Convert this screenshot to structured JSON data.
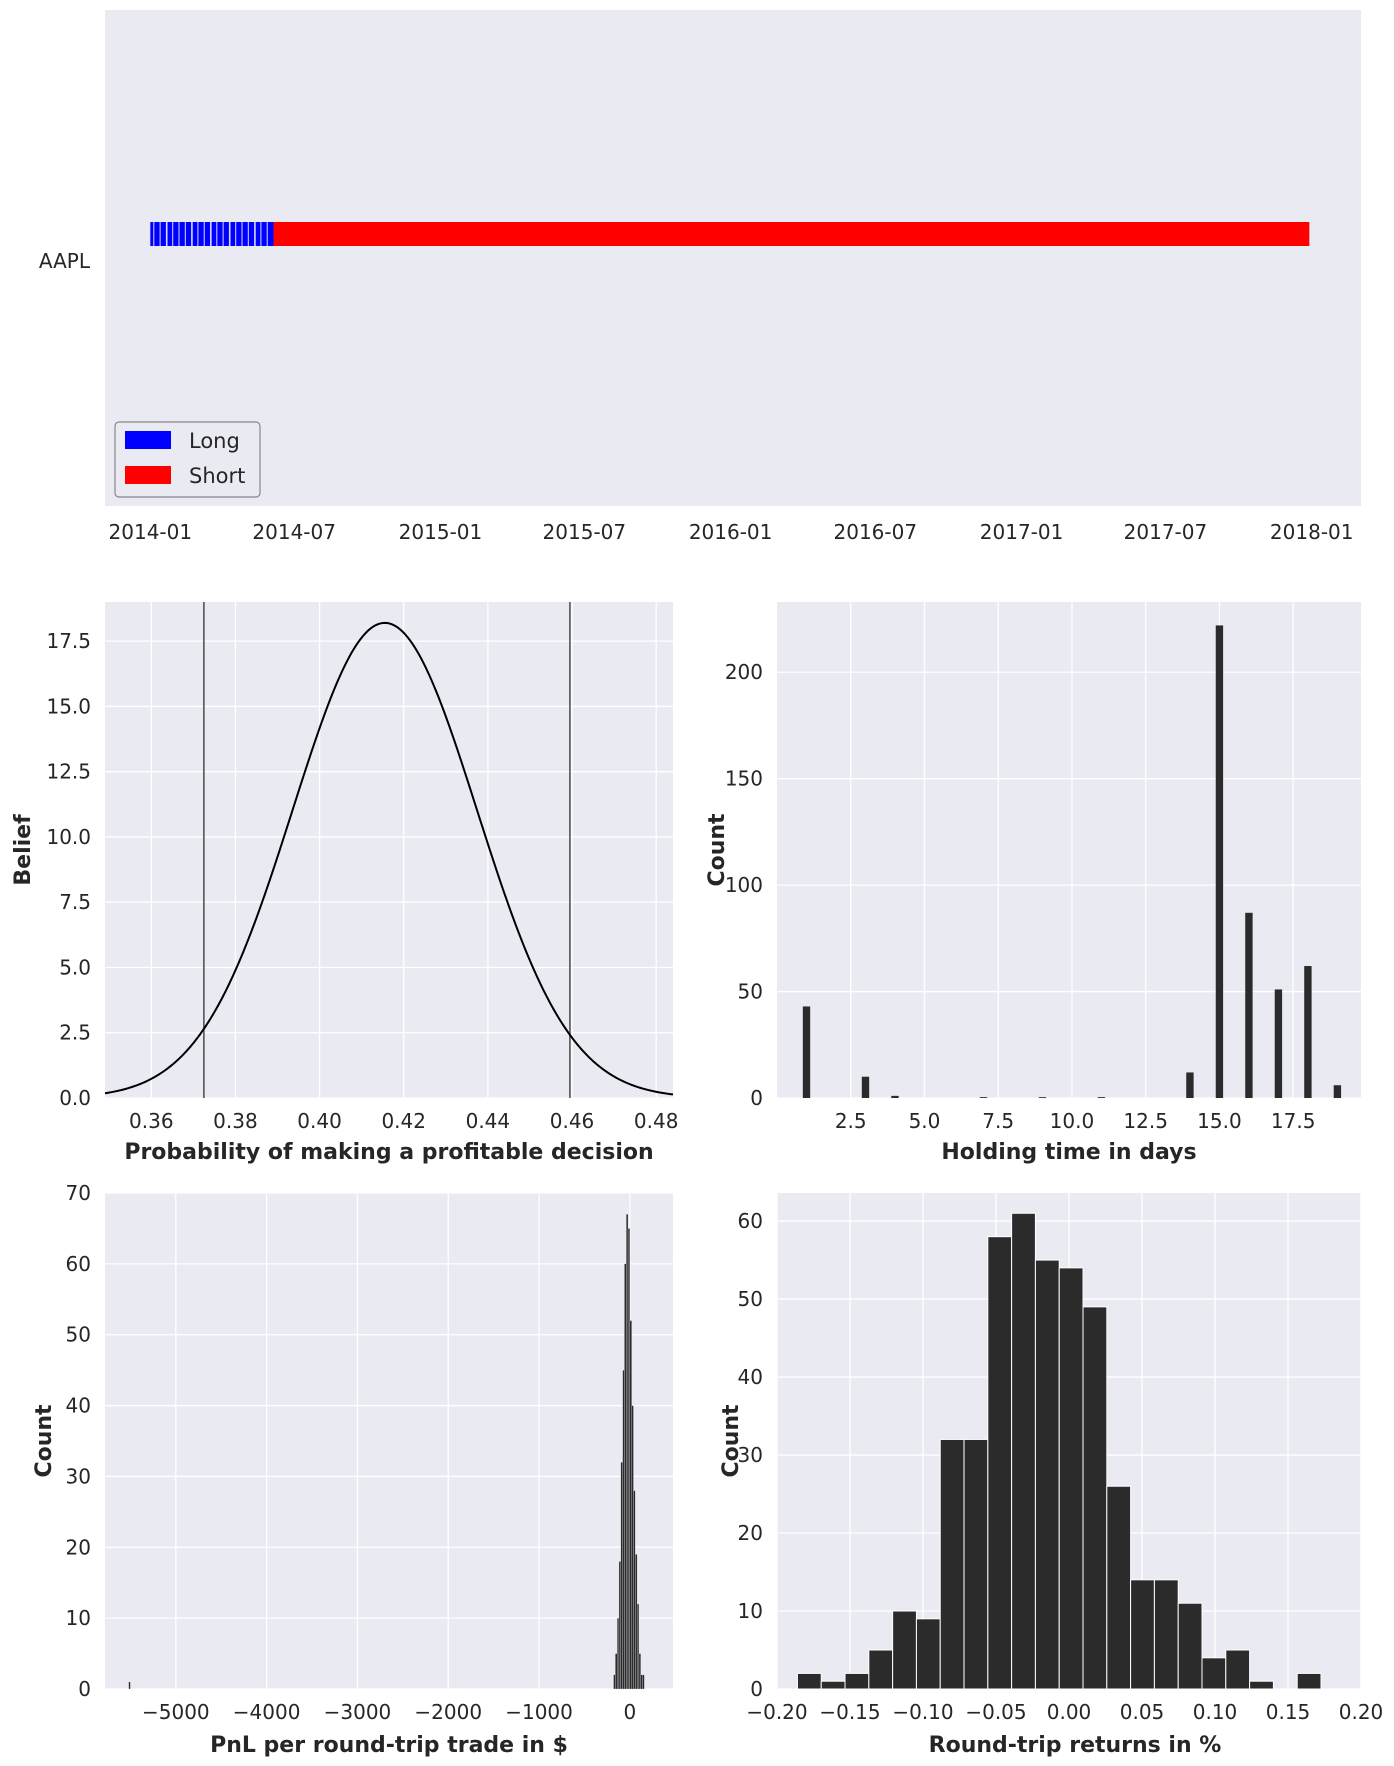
{
  "chart_data": [
    {
      "id": "timeline",
      "type": "bar",
      "title": "",
      "category": "AAPL",
      "x_tick_labels": [
        "2014-01",
        "2014-07",
        "2015-01",
        "2015-07",
        "2016-01",
        "2016-07",
        "2017-01",
        "2017-07",
        "2018-01"
      ],
      "x_ticks_dates": [
        "2014-01-01",
        "2014-07-01",
        "2015-01-01",
        "2015-07-01",
        "2016-01-01",
        "2016-07-01",
        "2017-01-01",
        "2017-07-01",
        "2018-01-01"
      ],
      "xlim": [
        "2013-11-05",
        "2018-03-04"
      ],
      "segments": [
        {
          "name": "Long",
          "start": "2014-01-01",
          "end": "2014-06-05",
          "color": "#0000ff",
          "striped": true
        },
        {
          "name": "Short",
          "start": "2014-06-05",
          "end": "2017-12-29",
          "color": "#ff0000",
          "striped": false
        }
      ],
      "legend": [
        {
          "label": "Long",
          "color": "#0000ff"
        },
        {
          "label": "Short",
          "color": "#ff0000"
        }
      ],
      "legend_position": "bottom-left"
    },
    {
      "id": "belief",
      "type": "line",
      "xlabel": "Probability of making a profitable decision",
      "ylabel": "Belief",
      "xlim": [
        0.349,
        0.484
      ],
      "ylim": [
        0,
        19.0
      ],
      "x_ticks": [
        "0.36",
        "0.38",
        "0.40",
        "0.42",
        "0.44",
        "0.46",
        "0.48"
      ],
      "y_ticks": [
        "0.0",
        "2.5",
        "5.0",
        "7.5",
        "10.0",
        "12.5",
        "15.0",
        "17.5"
      ],
      "x_tick_values": [
        0.36,
        0.38,
        0.4,
        0.42,
        0.44,
        0.46,
        0.48
      ],
      "y_tick_values": [
        0,
        2.5,
        5,
        7.5,
        10,
        12.5,
        15,
        17.5
      ],
      "curve": {
        "distribution": "normal",
        "mean": 0.4155,
        "std": 0.0219,
        "peak": 18.2
      },
      "vlines": [
        0.3725,
        0.4595
      ],
      "grid": true
    },
    {
      "id": "holding",
      "type": "bar",
      "xlabel": "Holding time in days",
      "ylabel": "Count",
      "xlim": [
        0.0,
        19.8
      ],
      "ylim": [
        0,
        233
      ],
      "x_ticks": [
        "2.5",
        "5.0",
        "7.5",
        "10.0",
        "12.5",
        "15.0",
        "17.5"
      ],
      "y_ticks": [
        "0",
        "50",
        "100",
        "150",
        "200"
      ],
      "x_tick_values": [
        2.5,
        5,
        7.5,
        10,
        12.5,
        15,
        17.5
      ],
      "y_tick_values": [
        0,
        50,
        100,
        150,
        200
      ],
      "x": [
        1,
        3,
        4,
        7,
        9,
        11,
        14,
        15,
        16,
        17,
        18,
        19
      ],
      "values": [
        43,
        10,
        1,
        0.4,
        0.4,
        0.4,
        12,
        222,
        87,
        51,
        62,
        6
      ],
      "bar_width_days": 0.25,
      "grid": true
    },
    {
      "id": "pnl",
      "type": "bar",
      "xlabel": "PnL per round-trip trade in $",
      "ylabel": "Count",
      "xlim": [
        -5780,
        475
      ],
      "ylim": [
        0,
        70
      ],
      "x_ticks": [
        "−5000",
        "−4000",
        "−3000",
        "−2000",
        "−1000",
        "0"
      ],
      "y_ticks": [
        "0",
        "10",
        "20",
        "30",
        "40",
        "50",
        "60",
        "70"
      ],
      "x_tick_values": [
        -5000,
        -4000,
        -3000,
        -2000,
        -1000,
        0
      ],
      "y_tick_values": [
        0,
        10,
        20,
        30,
        40,
        50,
        60,
        70
      ],
      "bin_width": 20,
      "bins_left": [
        -5520,
        -180,
        -160,
        -140,
        -120,
        -100,
        -80,
        -60,
        -40,
        -20,
        0,
        20,
        40,
        60,
        80,
        100,
        120,
        140
      ],
      "values": [
        1,
        2,
        5,
        10,
        18,
        32,
        45,
        60,
        67,
        65,
        52,
        40,
        28,
        19,
        12,
        5,
        2,
        2
      ],
      "grid": true
    },
    {
      "id": "returns",
      "type": "bar",
      "xlabel": "Round-trip returns in %",
      "ylabel": "Count",
      "xlim": [
        -0.2,
        0.2
      ],
      "ylim": [
        0,
        63.6
      ],
      "x_ticks": [
        "−0.20",
        "−0.15",
        "−0.10",
        "−0.05",
        "0.00",
        "0.05",
        "0.10",
        "0.15",
        "0.20"
      ],
      "y_ticks": [
        "0",
        "10",
        "20",
        "30",
        "40",
        "50",
        "60"
      ],
      "x_tick_values": [
        -0.2,
        -0.15,
        -0.1,
        -0.05,
        0,
        0.05,
        0.1,
        0.15,
        0.2
      ],
      "y_tick_values": [
        0,
        10,
        20,
        30,
        40,
        50,
        60
      ],
      "bin_start": -0.186,
      "bin_width": 0.0163,
      "values": [
        2,
        1,
        2,
        5,
        10,
        9,
        32,
        32,
        58,
        61,
        55,
        54,
        49,
        26,
        14,
        14,
        11,
        4,
        5,
        1,
        0,
        2
      ],
      "grid": true
    }
  ]
}
